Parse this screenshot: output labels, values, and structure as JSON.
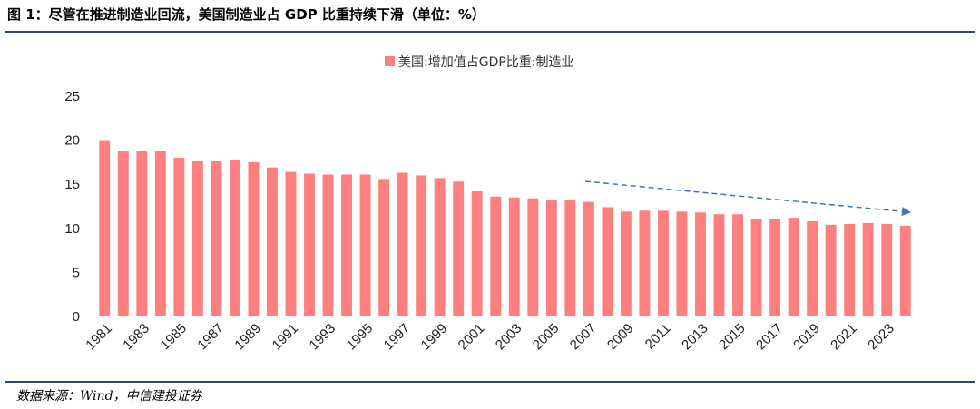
{
  "figure": {
    "title": "图 1：尽管在推进制造业回流，美国制造业占 GDP 比重持续下滑（单位：%）",
    "source": "数据来源：Wind，中信建投证券"
  },
  "colors": {
    "bar": "#ff7f7f",
    "arrow": "#4472c4",
    "axis": "#bfbfbf",
    "rule": "#2e4a73"
  },
  "chart_data": {
    "type": "bar",
    "title": "",
    "legend": "美国:增加值占GDP比重:制造业",
    "legend_position": "top-center",
    "xlabel": "",
    "ylabel": "",
    "ylim": [
      0,
      25
    ],
    "yticks": [
      0,
      5,
      10,
      15,
      20,
      25
    ],
    "grid": false,
    "categories": [
      "1981",
      "1982",
      "1983",
      "1984",
      "1985",
      "1986",
      "1987",
      "1988",
      "1989",
      "1990",
      "1991",
      "1992",
      "1993",
      "1994",
      "1995",
      "1996",
      "1997",
      "1998",
      "1999",
      "2000",
      "2001",
      "2002",
      "2003",
      "2004",
      "2005",
      "2006",
      "2007",
      "2008",
      "2009",
      "2010",
      "2011",
      "2012",
      "2013",
      "2014",
      "2015",
      "2016",
      "2017",
      "2018",
      "2019",
      "2020",
      "2021",
      "2022",
      "2023",
      "2024"
    ],
    "tick_labels": [
      "1981",
      "1983",
      "1985",
      "1987",
      "1989",
      "1991",
      "1993",
      "1995",
      "1997",
      "1999",
      "2001",
      "2003",
      "2005",
      "2007",
      "2009",
      "2011",
      "2013",
      "2015",
      "2017",
      "2019",
      "2021",
      "2023"
    ],
    "values": [
      19.9,
      18.7,
      18.7,
      18.7,
      17.9,
      17.5,
      17.5,
      17.7,
      17.4,
      16.8,
      16.3,
      16.1,
      16.0,
      16.0,
      16.0,
      15.5,
      16.2,
      15.9,
      15.6,
      15.2,
      14.1,
      13.5,
      13.4,
      13.3,
      13.1,
      13.1,
      12.9,
      12.3,
      11.8,
      11.9,
      11.9,
      11.8,
      11.7,
      11.5,
      11.5,
      11.0,
      11.0,
      11.1,
      10.7,
      10.3,
      10.4,
      10.5,
      10.4,
      10.2
    ],
    "annotations": [
      {
        "type": "dashed-arrow",
        "meaning": "downward trend"
      }
    ]
  }
}
